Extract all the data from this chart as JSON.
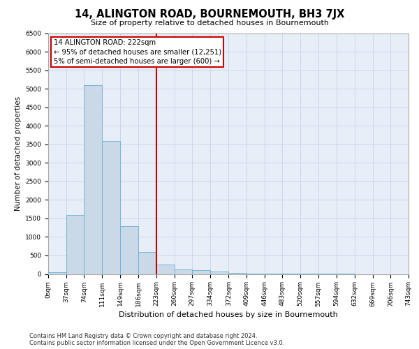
{
  "title": "14, ALINGTON ROAD, BOURNEMOUTH, BH3 7JX",
  "subtitle": "Size of property relative to detached houses in Bournemouth",
  "xlabel": "Distribution of detached houses by size in Bournemouth",
  "ylabel": "Number of detached properties",
  "bin_edges": [
    0,
    37,
    74,
    111,
    149,
    186,
    223,
    260,
    297,
    334,
    372,
    409,
    446,
    483,
    520,
    557,
    594,
    632,
    669,
    706,
    743
  ],
  "bar_heights": [
    50,
    1600,
    5100,
    3580,
    1300,
    600,
    260,
    130,
    100,
    70,
    30,
    10,
    5,
    3,
    2,
    1,
    1,
    0,
    0,
    0
  ],
  "bar_color": "#c9d9e8",
  "bar_edge_color": "#6baed6",
  "vline_x": 223,
  "vline_color": "#cc0000",
  "annotation_line1": "14 ALINGTON ROAD: 222sqm",
  "annotation_line2": "← 95% of detached houses are smaller (12,251)",
  "annotation_line3": "5% of semi-detached houses are larger (600) →",
  "annotation_box_color": "#cc0000",
  "grid_color": "#c8d4e8",
  "ylim": [
    0,
    6500
  ],
  "yticks": [
    0,
    500,
    1000,
    1500,
    2000,
    2500,
    3000,
    3500,
    4000,
    4500,
    5000,
    5500,
    6000,
    6500
  ],
  "footnote1": "Contains HM Land Registry data © Crown copyright and database right 2024.",
  "footnote2": "Contains public sector information licensed under the Open Government Licence v3.0.",
  "bg_color": "#e8eef8",
  "title_fontsize": 10.5,
  "subtitle_fontsize": 8,
  "tick_fontsize": 6.5,
  "ylabel_fontsize": 7.5,
  "xlabel_fontsize": 8,
  "annot_fontsize": 7.2,
  "footnote_fontsize": 6
}
